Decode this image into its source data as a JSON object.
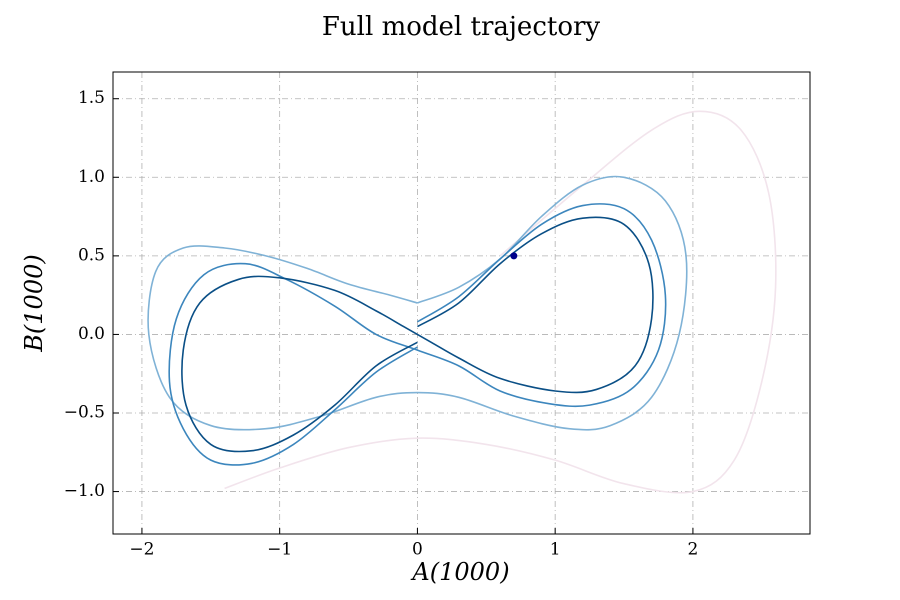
{
  "chart_data": {
    "type": "line",
    "title": "Full model trajectory",
    "xlabel": "A(1000)",
    "ylabel": "B(1000)",
    "xlim": [
      -2.21,
      2.85
    ],
    "ylim": [
      -1.27,
      1.67
    ],
    "xticks": [
      {
        "value": -2,
        "label": "−2"
      },
      {
        "value": -1,
        "label": "−1"
      },
      {
        "value": 0,
        "label": "0"
      },
      {
        "value": 1,
        "label": "1"
      },
      {
        "value": 2,
        "label": "2"
      }
    ],
    "yticks": [
      {
        "value": -1.0,
        "label": "−1.0"
      },
      {
        "value": -0.5,
        "label": "−0.5"
      },
      {
        "value": 0.0,
        "label": "0.0"
      },
      {
        "value": 0.5,
        "label": "0.5"
      },
      {
        "value": 1.0,
        "label": "1.0"
      },
      {
        "value": 1.5,
        "label": "1.5"
      }
    ],
    "grid": true,
    "series": [
      {
        "color": "#f2e4ec",
        "marker": false,
        "x": [
          0.6,
          1.2,
          1.7,
          2.05,
          2.35,
          2.55,
          2.6,
          2.5,
          2.3,
          2.0,
          1.5,
          1.0,
          0.5,
          0.0,
          -0.5,
          -1.0,
          -1.4
        ],
        "y": [
          0.5,
          0.95,
          1.3,
          1.42,
          1.3,
          0.9,
          0.3,
          -0.3,
          -0.8,
          -1.0,
          -0.95,
          -0.8,
          -0.7,
          -0.66,
          -0.72,
          -0.85,
          -0.98
        ]
      },
      {
        "color": "#7fb2d6",
        "marker": false,
        "x": [
          0.0,
          0.3,
          0.6,
          0.9,
          1.2,
          1.5,
          1.8,
          1.95,
          1.9,
          1.7,
          1.4,
          1.1,
          0.7,
          0.3,
          0.0,
          -0.3,
          -0.7,
          -1.1,
          -1.5,
          -1.8,
          -1.95,
          -1.9,
          -1.7,
          -1.4,
          -1.1,
          -0.8,
          -0.5,
          -0.2,
          0.0
        ],
        "y": [
          0.2,
          0.3,
          0.48,
          0.75,
          0.95,
          1.0,
          0.85,
          0.5,
          0.0,
          -0.4,
          -0.58,
          -0.6,
          -0.52,
          -0.4,
          -0.37,
          -0.4,
          -0.52,
          -0.6,
          -0.58,
          -0.4,
          0.0,
          0.4,
          0.55,
          0.55,
          0.5,
          0.42,
          0.32,
          0.25,
          0.2
        ]
      },
      {
        "color": "#3c86bd",
        "marker": false,
        "x": [
          0.0,
          0.3,
          0.6,
          0.9,
          1.2,
          1.5,
          1.7,
          1.8,
          1.75,
          1.55,
          1.25,
          0.95,
          0.6,
          0.3,
          0.0,
          -0.3,
          -0.6,
          -0.95,
          -1.25,
          -1.55,
          -1.75,
          -1.8,
          -1.7,
          -1.5,
          -1.2,
          -0.9,
          -0.6,
          -0.3,
          0.0
        ],
        "y": [
          0.08,
          0.24,
          0.48,
          0.7,
          0.82,
          0.8,
          0.6,
          0.25,
          -0.1,
          -0.35,
          -0.45,
          -0.44,
          -0.36,
          -0.2,
          -0.1,
          0.0,
          0.18,
          0.35,
          0.45,
          0.38,
          0.1,
          -0.3,
          -0.6,
          -0.8,
          -0.82,
          -0.7,
          -0.48,
          -0.24,
          -0.08
        ]
      },
      {
        "color": "#0a4f86",
        "marker": false,
        "x": [
          0.0,
          0.3,
          0.6,
          0.9,
          1.2,
          1.5,
          1.68,
          1.7,
          1.58,
          1.3,
          1.0,
          0.6,
          0.3,
          0.1,
          -0.1,
          -0.3,
          -0.6,
          -1.0,
          -1.3,
          -1.58,
          -1.7,
          -1.68,
          -1.5,
          -1.2,
          -0.9,
          -0.6,
          -0.3,
          0.0
        ],
        "y": [
          0.05,
          0.2,
          0.45,
          0.64,
          0.74,
          0.7,
          0.45,
          0.1,
          -0.2,
          -0.35,
          -0.36,
          -0.28,
          -0.15,
          -0.05,
          0.05,
          0.15,
          0.28,
          0.36,
          0.35,
          0.2,
          -0.1,
          -0.45,
          -0.7,
          -0.74,
          -0.64,
          -0.45,
          -0.2,
          -0.05
        ]
      },
      {
        "color": "#00008b",
        "marker": true,
        "x": [
          0.7
        ],
        "y": [
          0.5
        ]
      }
    ]
  }
}
